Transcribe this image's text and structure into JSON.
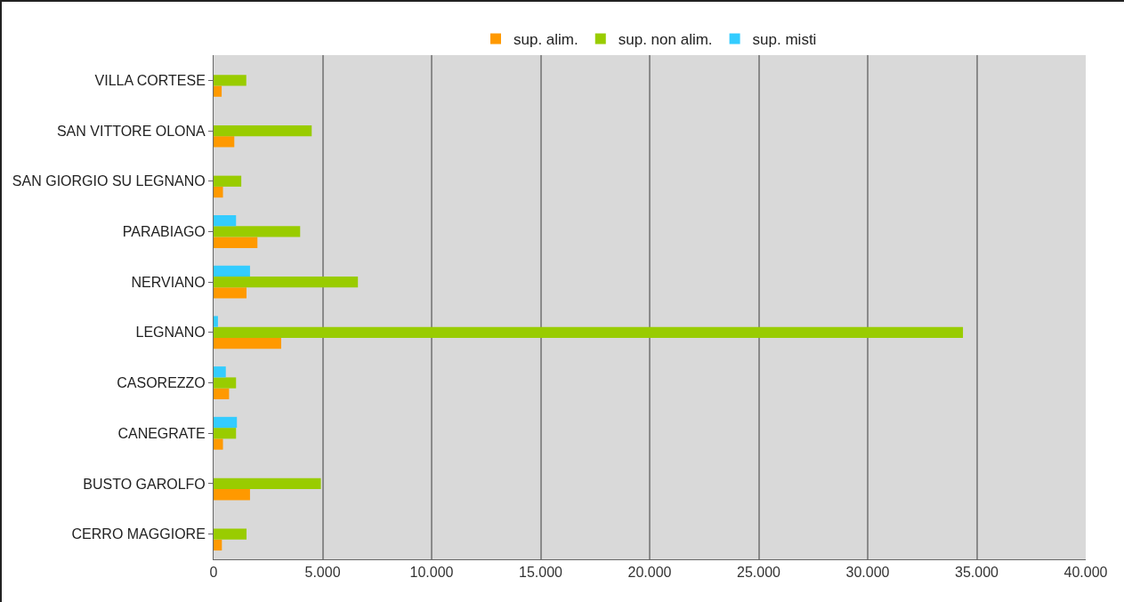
{
  "chart_data": {
    "type": "bar",
    "orientation": "horizontal",
    "categories": [
      "VILLA CORTESE",
      "SAN VITTORE OLONA",
      "SAN GIORGIO SU LEGNANO",
      "PARABIAGO",
      "NERVIANO",
      "LEGNANO",
      "CASOREZZO",
      "CANEGRATE",
      "BUSTO GAROLFO",
      "CERRO MAGGIORE"
    ],
    "series": [
      {
        "name": "sup. alim.",
        "color": "#ff9900",
        "values": [
          370,
          950,
          430,
          2010,
          1510,
          3100,
          710,
          430,
          1670,
          380
        ]
      },
      {
        "name": "sup. non alim.",
        "color": "#99cc00",
        "values": [
          1500,
          4500,
          1270,
          3970,
          6620,
          34370,
          1030,
          1030,
          4920,
          1510
        ]
      },
      {
        "name": "sup. misti",
        "color": "#33ccff",
        "values": [
          0,
          0,
          0,
          1030,
          1670,
          200,
          560,
          1070,
          0,
          0
        ]
      }
    ],
    "xlim": [
      0,
      40000
    ],
    "xticks": [
      0,
      {
        "value": 5000,
        "label": "5.000"
      },
      {
        "value": 10000,
        "label": "10.000"
      },
      {
        "value": 15000,
        "label": "15.000"
      },
      {
        "value": 20000,
        "label": "20.000"
      },
      {
        "value": 25000,
        "label": "25.000"
      },
      {
        "value": 30000,
        "label": "30.000"
      },
      {
        "value": 35000,
        "label": "35.000"
      },
      {
        "value": 40000,
        "label": "40.000"
      }
    ],
    "grid": "x",
    "legend": "top"
  }
}
